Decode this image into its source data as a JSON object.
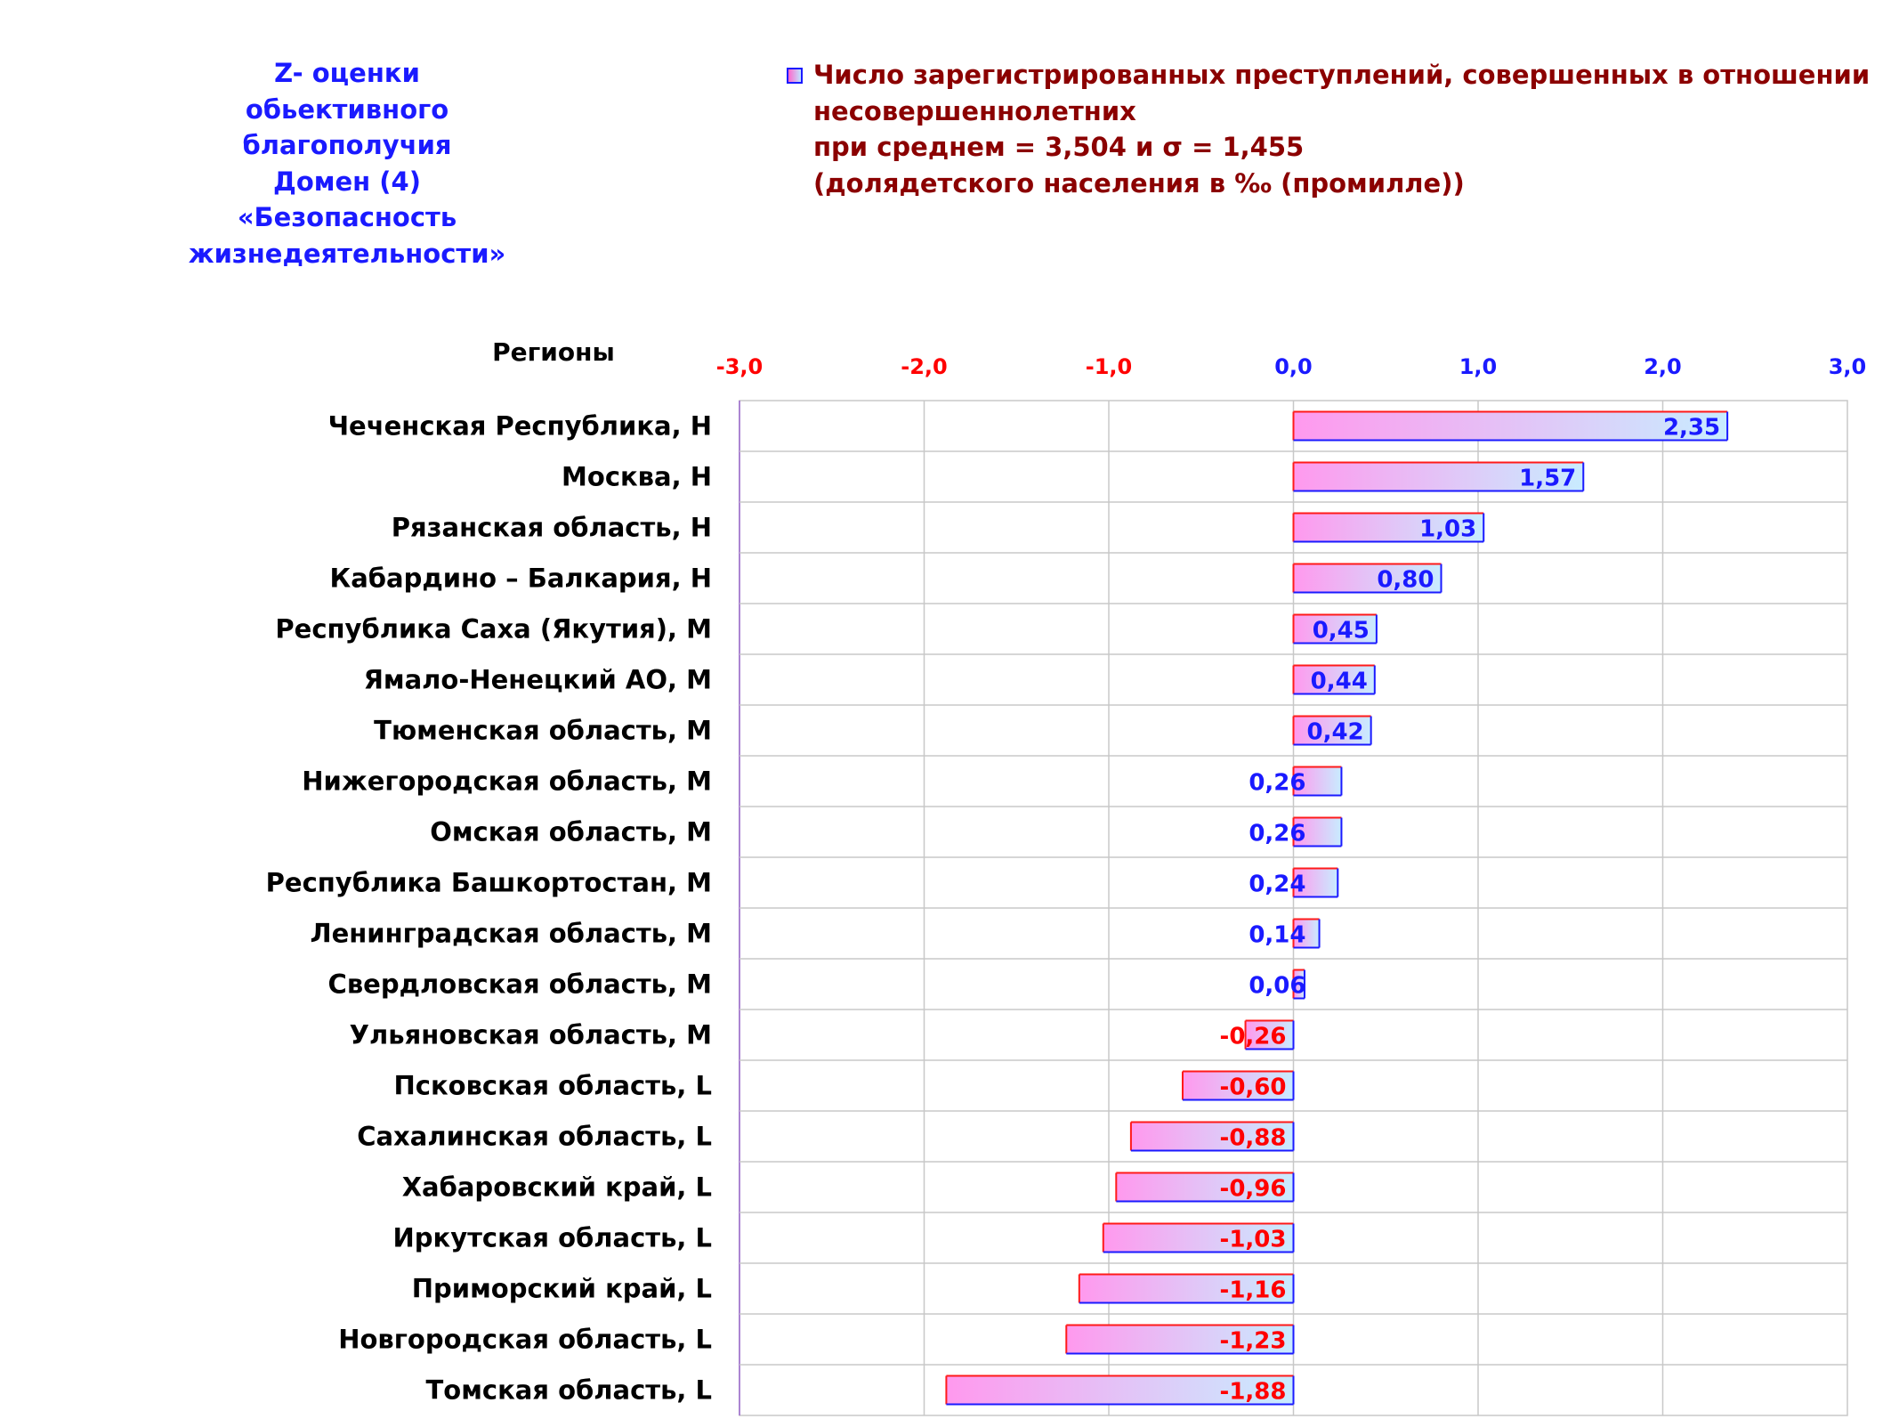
{
  "left_title": {
    "lines": [
      "Z- оценки",
      "обьективного",
      "благополучия",
      "Домен (4)",
      "«Безопасность",
      "жизнедеятельности»"
    ]
  },
  "legend": {
    "icon": "legend-swatch",
    "lines": [
      "Число зарегистрированных преступлений, совершенных в отношении",
      "несовершеннолетних",
      "при среднем = 3,504  и σ = 1,455",
      "(долядетского населения в ‰ (промилле))"
    ]
  },
  "colors": {
    "positive_text": "#1a1aff",
    "negative_text": "#ff0000",
    "positive_border": "#1a1aff",
    "negative_border": "#ff1a1a",
    "bar_gradient_start": "#ff99ee",
    "bar_gradient_end": "#c8ecff",
    "label_text": "#000000",
    "grid": "#c8c8c8",
    "title_blue": "#1a1aff",
    "legend_text": "#8b0000"
  },
  "chart_data": {
    "type": "bar",
    "orientation": "horizontal",
    "category_header": "Регионы",
    "xlim": [
      -3.0,
      3.0
    ],
    "xticks": [
      "-3,0",
      "-2,0",
      "-1,0",
      "0,0",
      "1,0",
      "2,0",
      "3,0"
    ],
    "xtick_values": [
      -3,
      -2,
      -1,
      0,
      1,
      2,
      3
    ],
    "grid": true,
    "categories": [
      "Чеченская Республика,  H",
      "Москва,  H",
      "Рязанская область,  H",
      "Кабардино – Балкария,  H",
      "Республика Саха (Якутия),  M",
      "Ямало-Ненецкий АО,  M",
      "Тюменская область,  M",
      "Нижегородская область,  M",
      "Омская область,  M",
      "Республика Башкортостан,  M",
      "Ленинградская область,  M",
      "Свердловская область,  M",
      "Ульяновская область,  M",
      "Псковская область,  L",
      "Сахалинская область,  L",
      "Хабаровский край,  L",
      "Иркутская область,  L",
      "Приморский край,  L",
      "Новгородская область,  L",
      "Томская область,  L"
    ],
    "values": [
      2.35,
      1.57,
      1.03,
      0.8,
      0.45,
      0.44,
      0.42,
      0.26,
      0.26,
      0.24,
      0.14,
      0.06,
      -0.26,
      -0.6,
      -0.88,
      -0.96,
      -1.03,
      -1.16,
      -1.23,
      -1.88
    ],
    "value_labels": [
      "2,35",
      "1,57",
      "1,03",
      "0,80",
      "0,45",
      "0,44",
      "0,42",
      "0,26",
      "0,26",
      "0,24",
      "0,14",
      "0,06",
      "-0,26",
      "-0,60",
      "-0,88",
      "-0,96",
      "-1,03",
      "-1,16",
      "-1,23",
      "-1,88"
    ]
  }
}
